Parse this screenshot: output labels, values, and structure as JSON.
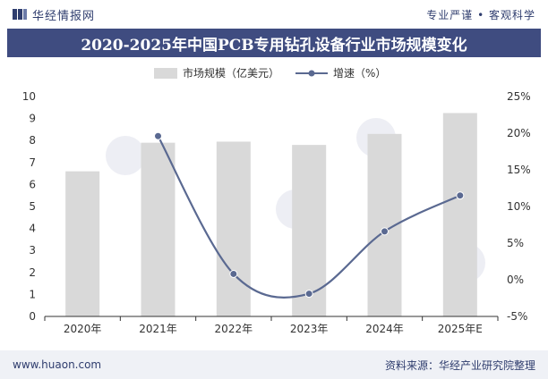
{
  "header": {
    "brand_name": "华经情报网",
    "slogan": "专业严谨 • 客观科学"
  },
  "chart_data": {
    "type": "bar",
    "title": "2020-2025年中国PCB专用钻孔设备行业市场规模变化",
    "categories": [
      "2020年",
      "2021年",
      "2022年",
      "2023年",
      "2024年",
      "2025年E"
    ],
    "series": [
      {
        "name": "市场规模（亿美元）",
        "type": "bar",
        "axis": "left",
        "color": "#d9d9d9",
        "values": [
          6.6,
          7.9,
          7.95,
          7.8,
          8.3,
          9.25
        ]
      },
      {
        "name": "增速（%）",
        "type": "line",
        "axis": "right",
        "color": "#5a6991",
        "values": [
          null,
          19.6,
          0.8,
          -1.9,
          6.6,
          11.5
        ]
      }
    ],
    "y_left": {
      "min": 0,
      "max": 10,
      "ticks": [
        0,
        1,
        2,
        3,
        4,
        5,
        6,
        7,
        8,
        9,
        10
      ]
    },
    "y_right": {
      "min": -5,
      "max": 25,
      "ticks": [
        -5,
        0,
        5,
        10,
        15,
        20,
        25
      ],
      "tick_labels": [
        "-5%",
        "0%",
        "5%",
        "10%",
        "15%",
        "20%",
        "25%"
      ]
    },
    "legend_position": "top-center",
    "grid": false
  },
  "footer": {
    "website": "www.huaon.com",
    "source": "资料来源：华经产业研究院整理"
  }
}
